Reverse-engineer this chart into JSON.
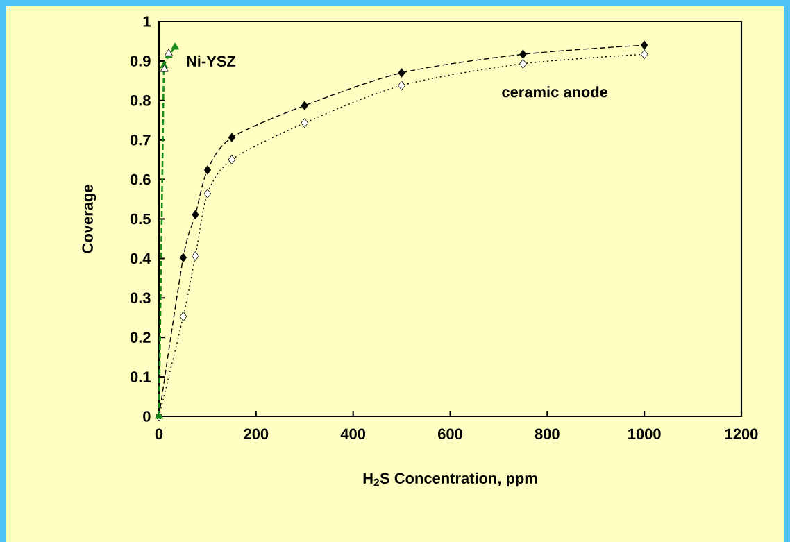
{
  "chart_data": {
    "type": "line",
    "xlabel": "H$_{2}$S Concentration, ppm",
    "ylabel": "Coverage",
    "xlim": [
      0,
      1200
    ],
    "xticks": [
      0,
      200,
      400,
      600,
      800,
      1000,
      1200
    ],
    "ylim": [
      0,
      1
    ],
    "yticks": [
      0,
      0.1,
      0.2,
      0.3,
      0.4,
      0.5,
      0.6,
      0.7,
      0.8,
      0.9,
      1
    ],
    "grid": false,
    "annotations": [
      "Ni-YSZ",
      "ceramic anode"
    ],
    "series": [
      {
        "color": "#000000",
        "marker": "diamond",
        "line_style": "dashed",
        "x": [
          0,
          50,
          75,
          100,
          150,
          300,
          500,
          750,
          1000
        ],
        "values": [
          0,
          0.402,
          0.511,
          0.624,
          0.706,
          0.787,
          0.87,
          0.917,
          0.94
        ]
      },
      {
        "color": "#000000",
        "marker": "diamond",
        "line_style": "dotted",
        "x": [
          0,
          50,
          75,
          100,
          150,
          300,
          500,
          750,
          1000
        ],
        "values": [
          0,
          0.253,
          0.406,
          0.564,
          0.65,
          0.743,
          0.838,
          0.893,
          0.917
        ]
      },
      {
        "color": "#1a8c1a",
        "marker": "triangle",
        "line_style": "dashed",
        "x": [
          0,
          10,
          20,
          33
        ],
        "values": [
          0,
          0.888,
          0.914,
          0.935
        ]
      },
      {
        "type": "scatter",
        "color": "#000000",
        "marker": "triangle",
        "x": [
          11,
          20
        ],
        "values": [
          0.879,
          0.919
        ]
      }
    ]
  }
}
